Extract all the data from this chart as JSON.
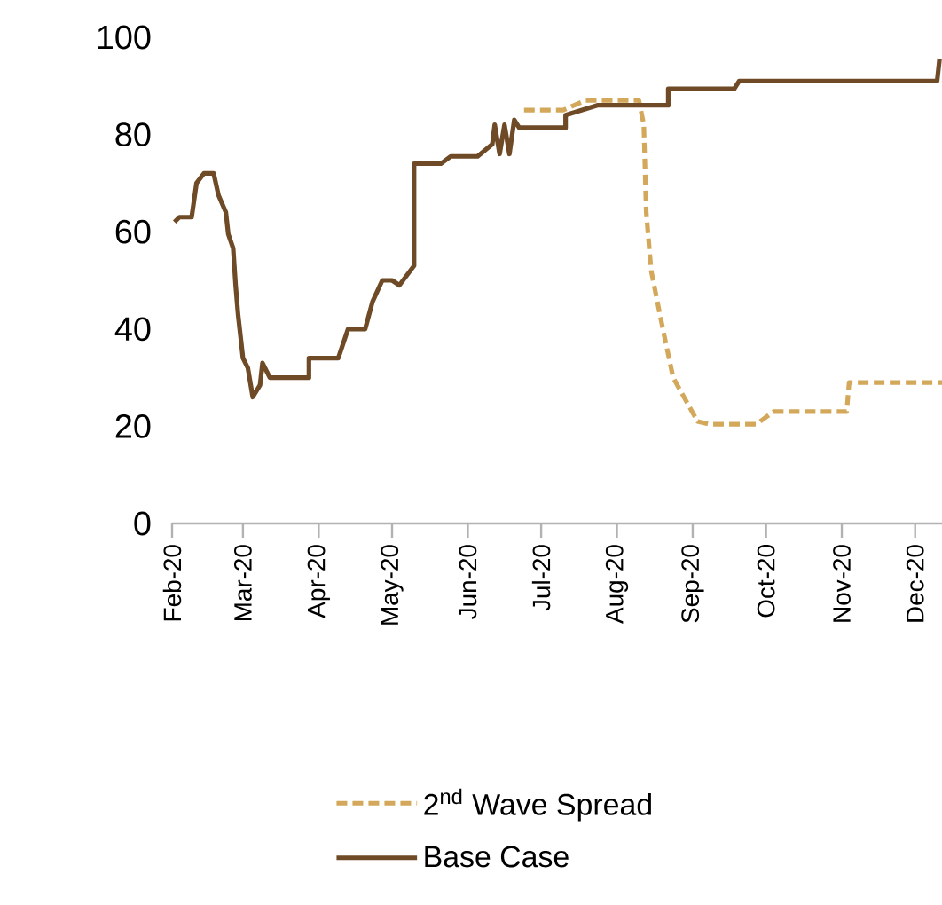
{
  "chart_data": {
    "type": "line",
    "xlim": [
      "2020-02-01",
      "2020-12-12"
    ],
    "ylim": [
      0,
      100
    ],
    "yticks": [
      0,
      20,
      40,
      60,
      80,
      100
    ],
    "xticks": [
      {
        "value": "2020-02-01",
        "label": "Feb-20"
      },
      {
        "value": "2020-03-01",
        "label": "Mar-20"
      },
      {
        "value": "2020-04-01",
        "label": "Apr-20"
      },
      {
        "value": "2020-05-01",
        "label": "May-20"
      },
      {
        "value": "2020-06-01",
        "label": "Jun-20"
      },
      {
        "value": "2020-07-01",
        "label": "Jul-20"
      },
      {
        "value": "2020-08-01",
        "label": "Aug-20"
      },
      {
        "value": "2020-09-01",
        "label": "Sep-20"
      },
      {
        "value": "2020-10-01",
        "label": "Oct-20"
      },
      {
        "value": "2020-11-01",
        "label": "Nov-20"
      },
      {
        "value": "2020-12-01",
        "label": "Dec-20"
      }
    ],
    "legend": "bottom",
    "grid": false,
    "marker": "none",
    "series": [
      {
        "name": "2$^{nd}$ Wave Spread",
        "color": "#d4a85a",
        "line_style": "dashed",
        "x": [
          "2020-06-24",
          "2020-07-01",
          "2020-07-10",
          "2020-07-19",
          "2020-08-10",
          "2020-08-12",
          "2020-08-13",
          "2020-08-15",
          "2020-08-20",
          "2020-08-24",
          "2020-09-03",
          "2020-09-08",
          "2020-09-27",
          "2020-10-04",
          "2020-11-03",
          "2020-11-04",
          "2020-12-12"
        ],
        "values": [
          85,
          85,
          85,
          87,
          87,
          82,
          64,
          52,
          39.5,
          30,
          21,
          20.4,
          20.4,
          23,
          23,
          29,
          29
        ]
      },
      {
        "name": "Base Case",
        "color": "#6f4a26",
        "line_style": "solid",
        "x": [
          "2020-02-02",
          "2020-02-04",
          "2020-02-09",
          "2020-02-11",
          "2020-02-14",
          "2020-02-18",
          "2020-02-20",
          "2020-02-23",
          "2020-02-24",
          "2020-02-26",
          "2020-02-27",
          "2020-02-28",
          "2020-03-01",
          "2020-03-03",
          "2020-03-05",
          "2020-03-08",
          "2020-03-09",
          "2020-03-12",
          "2020-03-28",
          "2020-03-28",
          "2020-04-09",
          "2020-04-13",
          "2020-04-20",
          "2020-04-23",
          "2020-04-27",
          "2020-05-01",
          "2020-05-04",
          "2020-05-10",
          "2020-05-10",
          "2020-05-21",
          "2020-05-25",
          "2020-06-05",
          "2020-06-11",
          "2020-06-12",
          "2020-06-14",
          "2020-06-16",
          "2020-06-18",
          "2020-06-20",
          "2020-06-22",
          "2020-07-11",
          "2020-07-11",
          "2020-07-24",
          "2020-08-22",
          "2020-08-22",
          "2020-09-18",
          "2020-09-20",
          "2020-12-10",
          "2020-12-11"
        ],
        "values": [
          62,
          63,
          63,
          70,
          72,
          72,
          67.5,
          64,
          59.5,
          56.6,
          49,
          43,
          34,
          32,
          26,
          28.5,
          33,
          30,
          30,
          34,
          34,
          40,
          40,
          45.6,
          50,
          50,
          49,
          53,
          74,
          74,
          75.5,
          75.5,
          78,
          82,
          76,
          82,
          76,
          83,
          81.4,
          81.4,
          84,
          86,
          86,
          89.4,
          89.4,
          91,
          91,
          95.6
        ]
      }
    ]
  }
}
